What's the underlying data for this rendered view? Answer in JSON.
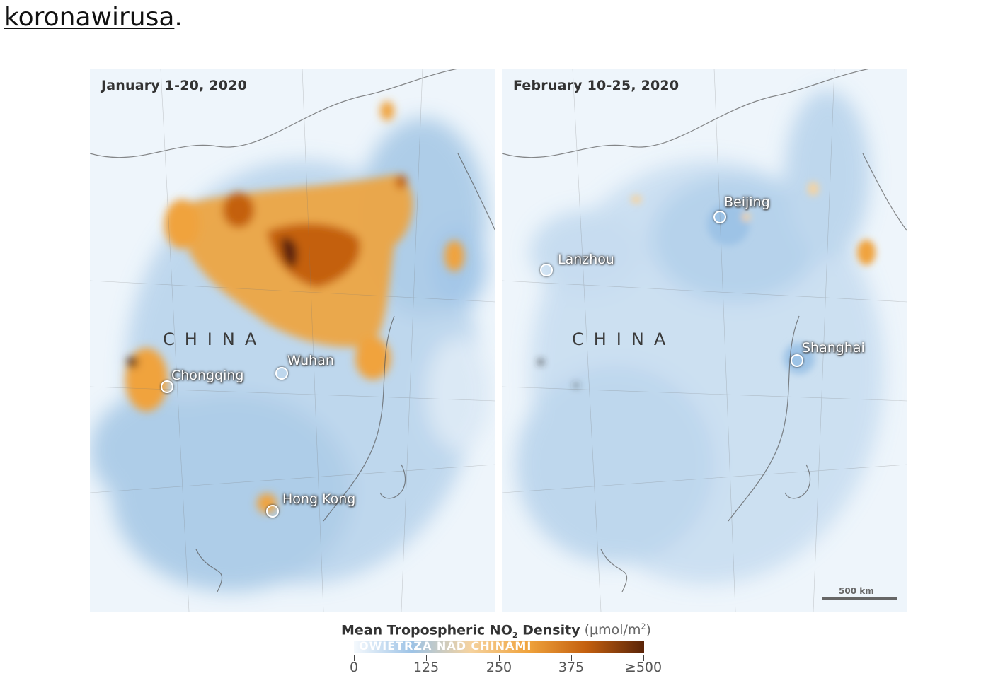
{
  "intro_text": {
    "link": "koronawirusa",
    "after": "."
  },
  "panels": [
    {
      "title": "January 1-20, 2020",
      "country": "CHINA",
      "cities": [
        "Wuhan",
        "Chongqing",
        "Hong Kong"
      ]
    },
    {
      "title": "February 10-25, 2020",
      "country": "CHINA",
      "cities": [
        "Beijing",
        "Lanzhou",
        "Shanghai"
      ],
      "scale": "500 km"
    }
  ],
  "legend": {
    "title": "Mean Tropospheric NO",
    "title_sub": "2",
    "title_rest": " Density",
    "unit": "(μmol/m",
    "unit_sup": "2",
    "unit_end": ")",
    "overlay_text": "OWIETRZA NAD CHINAMI",
    "ticks": [
      "0",
      "125",
      "250",
      "375",
      "≥500"
    ],
    "colors": [
      "#f5f9fd",
      "#9dc3e6",
      "#f5d3a0",
      "#f0a33c",
      "#c4600f",
      "#5a2408"
    ]
  }
}
